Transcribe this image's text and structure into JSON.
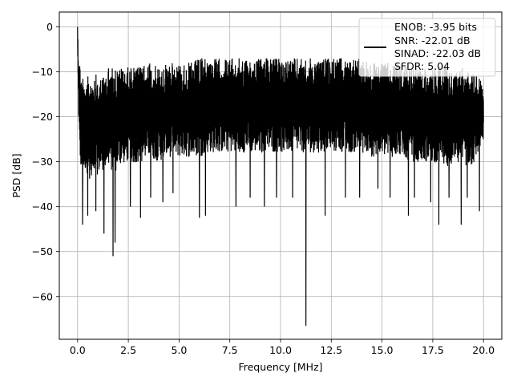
{
  "chart_data": {
    "type": "line",
    "xlabel": "Frequency [MHz]",
    "ylabel": "PSD [dB]",
    "xlim": [
      -0.9,
      20.9
    ],
    "ylim": [
      -69.5,
      3.3
    ],
    "xticks": [
      0.0,
      2.5,
      5.0,
      7.5,
      10.0,
      12.5,
      15.0,
      17.5,
      20.0
    ],
    "xtick_labels": [
      "0.0",
      "2.5",
      "5.0",
      "7.5",
      "10.0",
      "12.5",
      "15.0",
      "17.5",
      "20.0"
    ],
    "yticks": [
      0,
      -10,
      -20,
      -30,
      -40,
      -50,
      -60
    ],
    "ytick_labels": [
      "0",
      "−10",
      "−20",
      "−30",
      "−40",
      "−50",
      "−60"
    ],
    "grid": true,
    "legend": {
      "placement": "top-right",
      "lines": [
        "ENOB: -3.95 bits",
        "SNR: -22.01 dB",
        "SINAD: -22.03 dB",
        "SFDR: 5.04"
      ]
    },
    "series": [
      {
        "color": "#000000",
        "envelope_x": [
          0.0,
          0.05,
          0.1,
          0.2,
          0.4,
          0.6,
          0.8,
          1.0,
          1.2,
          1.5,
          1.8,
          2.0,
          2.5,
          3.0,
          3.5,
          4.0,
          4.5,
          5.0,
          5.5,
          6.0,
          6.5,
          7.0,
          7.5,
          8.0,
          8.5,
          9.0,
          9.5,
          10.0,
          10.5,
          11.0,
          11.5,
          12.0,
          12.5,
          13.0,
          13.5,
          14.0,
          14.5,
          15.0,
          15.5,
          16.0,
          16.5,
          17.0,
          17.5,
          18.0,
          18.5,
          19.0,
          19.5,
          20.0
        ],
        "upper": [
          0,
          -6,
          -7,
          -10,
          -11,
          -11,
          -10,
          -11,
          -11,
          -9,
          -9,
          -9,
          -9,
          -9,
          -8,
          -9,
          -8,
          -8,
          -8,
          -7,
          -7,
          -7,
          -7,
          -7,
          -7,
          -7,
          -7,
          -7,
          -7,
          -7,
          -7,
          -7,
          -7,
          -7,
          -7,
          -7,
          -8,
          -8,
          -8,
          -8,
          -9,
          -9,
          -9,
          -8,
          -10,
          -9,
          -10,
          -12
        ],
        "lower": [
          -6,
          -20,
          -29,
          -33,
          -32,
          -34,
          -32,
          -33,
          -32,
          -31,
          -33,
          -31,
          -30,
          -31,
          -29,
          -30,
          -29,
          -29,
          -29,
          -29,
          -28,
          -28,
          -28,
          -28,
          -28,
          -28,
          -28,
          -28,
          -28,
          -28,
          -28,
          -28,
          -28,
          -28,
          -28,
          -28,
          -29,
          -29,
          -29,
          -29,
          -30,
          -30,
          -30,
          -31,
          -31,
          -31,
          -31,
          -25
        ],
        "dips": [
          [
            0.25,
            -44
          ],
          [
            0.5,
            -42
          ],
          [
            0.9,
            -41
          ],
          [
            1.3,
            -46
          ],
          [
            1.75,
            -51
          ],
          [
            1.85,
            -48
          ],
          [
            2.6,
            -40
          ],
          [
            3.1,
            -40
          ],
          [
            3.1,
            -42.5
          ],
          [
            3.6,
            -38
          ],
          [
            4.2,
            -39
          ],
          [
            4.7,
            -37
          ],
          [
            6.0,
            -42.5
          ],
          [
            6.3,
            -42
          ],
          [
            7.8,
            -40
          ],
          [
            8.5,
            -38
          ],
          [
            9.2,
            -40
          ],
          [
            9.8,
            -38
          ],
          [
            10.6,
            -38
          ],
          [
            11.25,
            -66.5
          ],
          [
            12.2,
            -42
          ],
          [
            13.2,
            -38
          ],
          [
            13.9,
            -38
          ],
          [
            14.8,
            -36
          ],
          [
            15.4,
            -38
          ],
          [
            16.3,
            -42
          ],
          [
            16.6,
            -38
          ],
          [
            17.4,
            -39
          ],
          [
            17.8,
            -44
          ],
          [
            18.3,
            -38
          ],
          [
            18.9,
            -44
          ],
          [
            19.2,
            -38
          ],
          [
            19.8,
            -41
          ]
        ]
      }
    ]
  }
}
